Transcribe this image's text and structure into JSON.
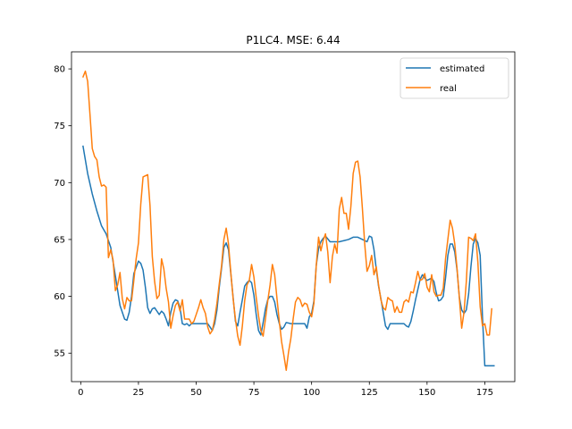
{
  "chart_data": {
    "type": "line",
    "title": "P1LC4. MSE: 6.44",
    "xlabel": "",
    "ylabel": "",
    "xlim": [
      -4,
      188
    ],
    "ylim": [
      52.5,
      81.5
    ],
    "xticks": [
      0,
      25,
      50,
      75,
      100,
      125,
      150,
      175
    ],
    "yticks": [
      55,
      60,
      65,
      70,
      75,
      80
    ],
    "grid": false,
    "legend_position": "top-right",
    "series": [
      {
        "name": "estimated",
        "color": "#1f77b4",
        "points": [
          [
            1,
            73.2
          ],
          [
            3,
            70.8
          ],
          [
            5,
            69.0
          ],
          [
            7,
            67.5
          ],
          [
            9,
            66.2
          ],
          [
            11,
            65.5
          ],
          [
            13,
            64.3
          ],
          [
            15,
            61.8
          ],
          [
            17,
            59.2
          ],
          [
            19,
            58.0
          ],
          [
            20,
            57.9
          ],
          [
            21,
            58.6
          ],
          [
            22,
            60.0
          ],
          [
            23,
            62.0
          ],
          [
            25,
            63.1
          ],
          [
            26,
            62.9
          ],
          [
            27,
            62.3
          ],
          [
            28,
            60.8
          ],
          [
            29,
            59.0
          ],
          [
            30,
            58.5
          ],
          [
            31,
            58.9
          ],
          [
            32,
            59.0
          ],
          [
            33,
            58.7
          ],
          [
            34,
            58.4
          ],
          [
            35,
            58.7
          ],
          [
            36,
            58.5
          ],
          [
            37,
            58.0
          ],
          [
            38,
            57.4
          ],
          [
            39,
            58.6
          ],
          [
            40,
            59.4
          ],
          [
            41,
            59.7
          ],
          [
            42,
            59.6
          ],
          [
            43,
            59.0
          ],
          [
            44,
            57.6
          ],
          [
            45,
            57.5
          ],
          [
            46,
            57.6
          ],
          [
            47,
            57.4
          ],
          [
            48,
            57.6
          ],
          [
            50,
            57.6
          ],
          [
            52,
            57.6
          ],
          [
            54,
            57.6
          ],
          [
            55,
            57.6
          ],
          [
            56,
            57.3
          ],
          [
            57,
            57.0
          ],
          [
            58,
            57.6
          ],
          [
            59,
            58.8
          ],
          [
            60,
            60.8
          ],
          [
            61,
            62.5
          ],
          [
            62,
            64.3
          ],
          [
            63,
            64.7
          ],
          [
            64,
            64.1
          ],
          [
            65,
            62.0
          ],
          [
            66,
            59.9
          ],
          [
            67,
            57.8
          ],
          [
            68,
            57.4
          ],
          [
            69,
            58.6
          ],
          [
            70,
            59.7
          ],
          [
            71,
            60.9
          ],
          [
            72,
            61.2
          ],
          [
            73,
            61.4
          ],
          [
            74,
            61.2
          ],
          [
            75,
            60.1
          ],
          [
            76,
            58.4
          ],
          [
            77,
            57.0
          ],
          [
            78,
            56.6
          ],
          [
            79,
            57.7
          ],
          [
            80,
            58.9
          ],
          [
            81,
            59.7
          ],
          [
            82,
            60.0
          ],
          [
            83,
            60.0
          ],
          [
            84,
            59.5
          ],
          [
            85,
            58.4
          ],
          [
            86,
            57.6
          ],
          [
            87,
            57.1
          ],
          [
            88,
            57.3
          ],
          [
            89,
            57.7
          ],
          [
            91,
            57.6
          ],
          [
            93,
            57.6
          ],
          [
            95,
            57.6
          ],
          [
            97,
            57.6
          ],
          [
            98,
            57.2
          ],
          [
            99,
            58.2
          ],
          [
            100,
            58.5
          ],
          [
            101,
            59.6
          ],
          [
            102,
            62.7
          ],
          [
            103,
            64.2
          ],
          [
            104,
            64.8
          ],
          [
            105,
            65.1
          ],
          [
            106,
            65.3
          ],
          [
            108,
            64.8
          ],
          [
            110,
            64.8
          ],
          [
            112,
            64.8
          ],
          [
            114,
            64.9
          ],
          [
            116,
            65.0
          ],
          [
            118,
            65.2
          ],
          [
            120,
            65.2
          ],
          [
            122,
            65.0
          ],
          [
            124,
            64.8
          ],
          [
            125,
            65.3
          ],
          [
            126,
            65.2
          ],
          [
            127,
            64.1
          ],
          [
            128,
            62.4
          ],
          [
            129,
            60.9
          ],
          [
            130,
            59.8
          ],
          [
            131,
            58.6
          ],
          [
            132,
            57.4
          ],
          [
            133,
            57.1
          ],
          [
            134,
            57.6
          ],
          [
            136,
            57.6
          ],
          [
            138,
            57.6
          ],
          [
            140,
            57.6
          ],
          [
            141,
            57.4
          ],
          [
            142,
            57.3
          ],
          [
            143,
            57.8
          ],
          [
            144,
            58.7
          ],
          [
            145,
            59.7
          ],
          [
            146,
            60.6
          ],
          [
            147,
            61.5
          ],
          [
            148,
            61.9
          ],
          [
            149,
            61.6
          ],
          [
            150,
            61.4
          ],
          [
            151,
            61.5
          ],
          [
            152,
            61.6
          ],
          [
            153,
            61.3
          ],
          [
            154,
            60.3
          ],
          [
            155,
            59.6
          ],
          [
            156,
            59.7
          ],
          [
            157,
            60.0
          ],
          [
            158,
            61.6
          ],
          [
            159,
            63.6
          ],
          [
            160,
            64.6
          ],
          [
            161,
            64.6
          ],
          [
            162,
            63.9
          ],
          [
            163,
            62.3
          ],
          [
            164,
            59.9
          ],
          [
            165,
            58.8
          ],
          [
            166,
            58.5
          ],
          [
            167,
            58.8
          ],
          [
            168,
            60.2
          ],
          [
            169,
            62.6
          ],
          [
            170,
            64.6
          ],
          [
            171,
            65.1
          ],
          [
            172,
            64.7
          ],
          [
            173,
            63.6
          ],
          [
            174,
            58.2
          ],
          [
            175,
            53.9
          ],
          [
            177,
            53.9
          ],
          [
            179,
            53.9
          ]
        ]
      },
      {
        "name": "real",
        "color": "#ff7f0e",
        "points": [
          [
            1,
            79.3
          ],
          [
            2,
            79.8
          ],
          [
            3,
            78.9
          ],
          [
            4,
            76.0
          ],
          [
            5,
            73.0
          ],
          [
            6,
            72.3
          ],
          [
            7,
            72.0
          ],
          [
            8,
            70.5
          ],
          [
            9,
            69.7
          ],
          [
            10,
            69.8
          ],
          [
            11,
            69.6
          ],
          [
            12,
            63.4
          ],
          [
            13,
            64.1
          ],
          [
            14,
            63.2
          ],
          [
            15,
            60.5
          ],
          [
            16,
            61.0
          ],
          [
            17,
            62.1
          ],
          [
            18,
            59.8
          ],
          [
            19,
            58.9
          ],
          [
            20,
            59.9
          ],
          [
            21,
            59.6
          ],
          [
            22,
            59.6
          ],
          [
            23,
            61.4
          ],
          [
            24,
            63.3
          ],
          [
            25,
            64.7
          ],
          [
            26,
            68.1
          ],
          [
            27,
            70.5
          ],
          [
            28,
            70.6
          ],
          [
            29,
            70.7
          ],
          [
            30,
            68.0
          ],
          [
            31,
            63.5
          ],
          [
            32,
            61.3
          ],
          [
            33,
            59.8
          ],
          [
            34,
            60.1
          ],
          [
            35,
            63.3
          ],
          [
            36,
            62.4
          ],
          [
            37,
            60.7
          ],
          [
            38,
            59.5
          ],
          [
            39,
            57.2
          ],
          [
            40,
            58.3
          ],
          [
            41,
            59.2
          ],
          [
            42,
            59.5
          ],
          [
            43,
            58.7
          ],
          [
            44,
            59.7
          ],
          [
            45,
            58.0
          ],
          [
            46,
            58.0
          ],
          [
            47,
            58.0
          ],
          [
            48,
            57.6
          ],
          [
            49,
            57.8
          ],
          [
            50,
            58.4
          ],
          [
            51,
            59.0
          ],
          [
            52,
            59.7
          ],
          [
            53,
            59.0
          ],
          [
            54,
            58.5
          ],
          [
            55,
            57.3
          ],
          [
            56,
            56.7
          ],
          [
            57,
            57.0
          ],
          [
            58,
            58.0
          ],
          [
            59,
            59.4
          ],
          [
            60,
            61.1
          ],
          [
            61,
            62.7
          ],
          [
            62,
            65.0
          ],
          [
            63,
            66.0
          ],
          [
            64,
            64.6
          ],
          [
            65,
            62.1
          ],
          [
            66,
            59.8
          ],
          [
            67,
            58.0
          ],
          [
            68,
            56.5
          ],
          [
            69,
            55.7
          ],
          [
            70,
            57.4
          ],
          [
            71,
            59.6
          ],
          [
            72,
            61.0
          ],
          [
            73,
            61.4
          ],
          [
            74,
            62.8
          ],
          [
            75,
            61.7
          ],
          [
            76,
            59.9
          ],
          [
            77,
            58.3
          ],
          [
            78,
            57.0
          ],
          [
            79,
            56.5
          ],
          [
            80,
            58.0
          ],
          [
            81,
            59.6
          ],
          [
            82,
            61.0
          ],
          [
            83,
            62.8
          ],
          [
            84,
            61.9
          ],
          [
            85,
            59.8
          ],
          [
            86,
            57.8
          ],
          [
            87,
            56.0
          ],
          [
            88,
            54.8
          ],
          [
            89,
            53.5
          ],
          [
            90,
            55.1
          ],
          [
            91,
            56.3
          ],
          [
            92,
            58.0
          ],
          [
            93,
            59.5
          ],
          [
            94,
            59.9
          ],
          [
            95,
            59.7
          ],
          [
            96,
            59.1
          ],
          [
            97,
            59.4
          ],
          [
            98,
            59.3
          ],
          [
            99,
            58.6
          ],
          [
            100,
            58.2
          ],
          [
            101,
            59.4
          ],
          [
            102,
            62.7
          ],
          [
            103,
            65.2
          ],
          [
            104,
            64.0
          ],
          [
            105,
            64.9
          ],
          [
            106,
            65.5
          ],
          [
            107,
            63.9
          ],
          [
            108,
            61.2
          ],
          [
            109,
            63.5
          ],
          [
            110,
            64.6
          ],
          [
            111,
            63.8
          ],
          [
            112,
            67.7
          ],
          [
            113,
            68.7
          ],
          [
            114,
            67.3
          ],
          [
            115,
            67.3
          ],
          [
            116,
            65.9
          ],
          [
            117,
            67.9
          ],
          [
            118,
            70.8
          ],
          [
            119,
            71.8
          ],
          [
            120,
            71.9
          ],
          [
            121,
            70.5
          ],
          [
            122,
            67.7
          ],
          [
            123,
            64.6
          ],
          [
            124,
            62.2
          ],
          [
            125,
            62.7
          ],
          [
            126,
            63.6
          ],
          [
            127,
            61.9
          ],
          [
            128,
            62.6
          ],
          [
            129,
            61.0
          ],
          [
            130,
            59.7
          ],
          [
            131,
            59.0
          ],
          [
            132,
            58.8
          ],
          [
            133,
            59.9
          ],
          [
            134,
            59.7
          ],
          [
            135,
            59.6
          ],
          [
            136,
            58.6
          ],
          [
            137,
            59.1
          ],
          [
            138,
            58.6
          ],
          [
            139,
            58.6
          ],
          [
            140,
            59.5
          ],
          [
            141,
            59.7
          ],
          [
            142,
            59.5
          ],
          [
            143,
            60.4
          ],
          [
            144,
            60.3
          ],
          [
            145,
            61.2
          ],
          [
            146,
            62.2
          ],
          [
            147,
            61.4
          ],
          [
            148,
            61.5
          ],
          [
            149,
            62.0
          ],
          [
            150,
            60.8
          ],
          [
            151,
            60.4
          ],
          [
            152,
            61.9
          ],
          [
            153,
            60.4
          ],
          [
            154,
            60.0
          ],
          [
            155,
            60.1
          ],
          [
            156,
            60.1
          ],
          [
            157,
            60.7
          ],
          [
            158,
            63.3
          ],
          [
            159,
            65.0
          ],
          [
            160,
            66.7
          ],
          [
            161,
            66.0
          ],
          [
            162,
            64.6
          ],
          [
            163,
            62.4
          ],
          [
            164,
            59.8
          ],
          [
            165,
            57.2
          ],
          [
            166,
            58.6
          ],
          [
            167,
            61.3
          ],
          [
            168,
            65.2
          ],
          [
            169,
            65.1
          ],
          [
            170,
            64.9
          ],
          [
            171,
            65.5
          ],
          [
            172,
            63.0
          ],
          [
            173,
            59.1
          ],
          [
            174,
            57.4
          ],
          [
            175,
            57.6
          ],
          [
            176,
            56.6
          ],
          [
            177,
            56.6
          ],
          [
            178,
            58.9
          ]
        ]
      }
    ]
  }
}
